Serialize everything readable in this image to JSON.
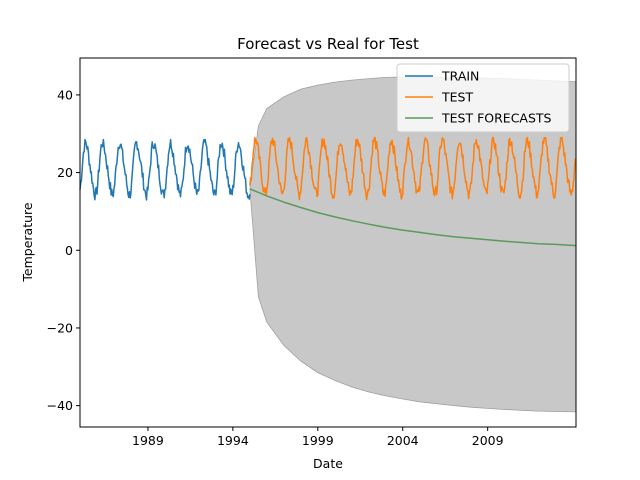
{
  "chart_data": {
    "type": "line",
    "title": "Forecast vs Real for Test",
    "xlabel": "Date",
    "ylabel": "Temperature",
    "xlim": [
      1985.0,
      2014.2
    ],
    "ylim": [
      -45.5,
      49.5
    ],
    "x_ticks": [
      1989,
      1994,
      1999,
      2004,
      2009
    ],
    "x_tick_labels": [
      "1989",
      "1994",
      "1999",
      "2004",
      "2009"
    ],
    "y_ticks": [
      -40,
      -20,
      0,
      20,
      40
    ],
    "y_tick_labels": [
      "−40",
      "−20",
      "0",
      "20",
      "40"
    ],
    "grid": false,
    "legend_position": "top-right",
    "series": [
      {
        "name": "TRAIN",
        "color": "#1f77b4",
        "start": 1985.0,
        "end": 1995.0,
        "seasonal": {
          "mean": 21.0,
          "amplitude": 6.5,
          "period": 1.0,
          "min": 12.5,
          "max": 28.5
        }
      },
      {
        "name": "TEST",
        "color": "#ff7f0e",
        "start": 1995.0,
        "end": 2014.2,
        "seasonal": {
          "mean": 21.5,
          "amplitude": 6.8,
          "period": 1.0,
          "min": 11.5,
          "max": 29.0
        }
      },
      {
        "name": "TEST FORECASTS",
        "color": "#5a9a5a",
        "x": [
          1995.0,
          1996.0,
          1997.0,
          1998.0,
          1999.0,
          2000.0,
          2001.0,
          2002.0,
          2003.0,
          2004.0,
          2005.0,
          2006.0,
          2007.0,
          2008.0,
          2009.0,
          2010.0,
          2011.0,
          2012.0,
          2013.0,
          2014.2
        ],
        "values": [
          15.8,
          14.0,
          12.4,
          11.0,
          9.7,
          8.6,
          7.6,
          6.7,
          5.9,
          5.2,
          4.6,
          4.0,
          3.5,
          3.1,
          2.7,
          2.3,
          2.0,
          1.7,
          1.5,
          1.2
        ]
      }
    ],
    "confidence_band": {
      "color": "#c8c8c8",
      "x": [
        1995.0,
        1995.5,
        1996.0,
        1997.0,
        1998.0,
        1999.0,
        2000.0,
        2001.0,
        2002.0,
        2003.0,
        2004.0,
        2005.0,
        2006.0,
        2007.0,
        2008.0,
        2009.0,
        2010.0,
        2011.0,
        2012.0,
        2013.0,
        2014.2
      ],
      "lower": [
        15.8,
        -12.0,
        -18.5,
        -24.5,
        -28.5,
        -31.5,
        -33.5,
        -35.2,
        -36.5,
        -37.5,
        -38.3,
        -39.0,
        -39.5,
        -40.0,
        -40.4,
        -40.7,
        -41.0,
        -41.2,
        -41.4,
        -41.5,
        -41.6
      ],
      "upper": [
        15.8,
        32.0,
        36.5,
        39.5,
        41.5,
        42.5,
        43.3,
        43.8,
        44.2,
        44.5,
        44.6,
        44.6,
        44.6,
        44.5,
        44.4,
        44.3,
        44.2,
        44.0,
        43.8,
        43.6,
        43.4
      ]
    }
  }
}
